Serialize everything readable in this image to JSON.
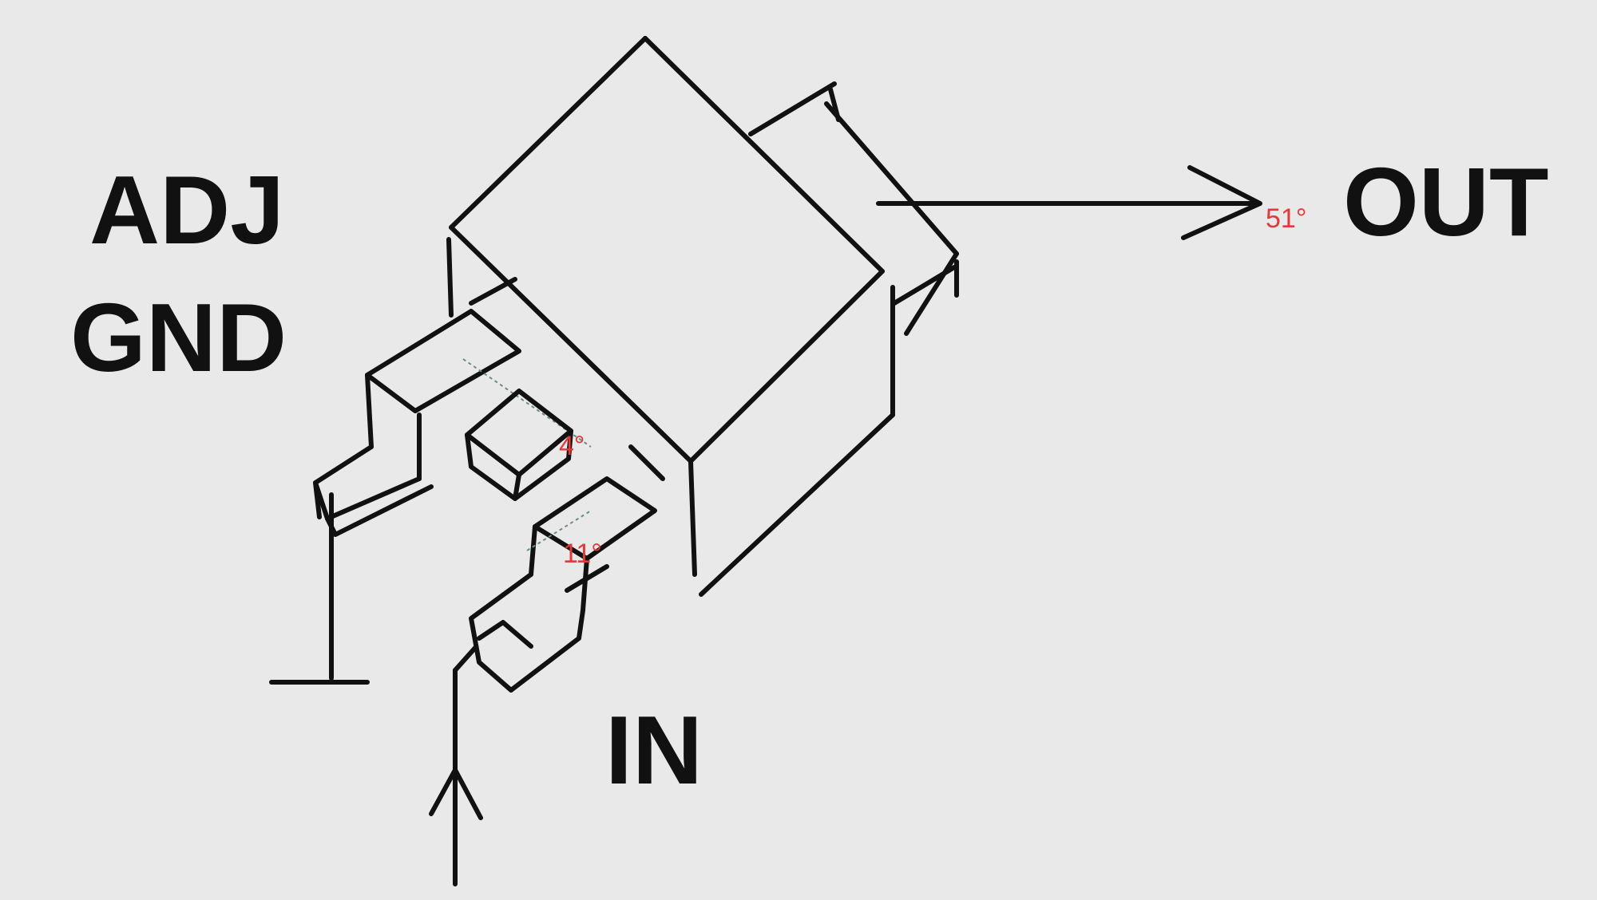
{
  "labels": {
    "adj": "ADJ",
    "gnd": "GND",
    "out": "OUT",
    "in": "IN"
  },
  "angles": {
    "out": "51°",
    "tab_top": "4°",
    "tab_bottom": "11°"
  },
  "colors": {
    "background": "#e9e9e9",
    "ink": "#111111",
    "angle": "#e03a3a"
  }
}
